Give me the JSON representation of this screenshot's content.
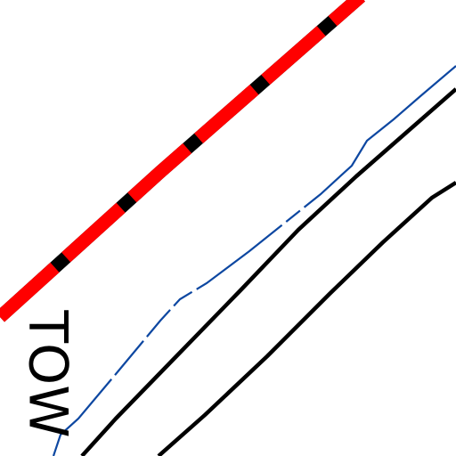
{
  "map": {
    "colors": {
      "background": "#ffffff",
      "railway_outer": "#ff0000",
      "railway_gap": "#000000",
      "road": "#000000",
      "waterway": "#0d47a1"
    },
    "place_label": "TOW"
  }
}
